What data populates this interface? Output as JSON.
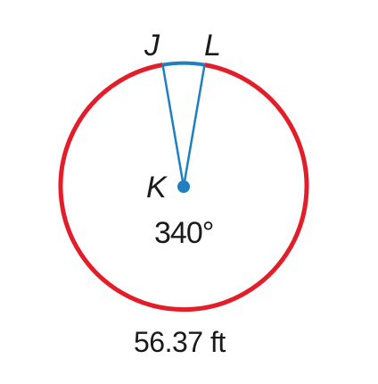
{
  "diagram": {
    "labels": {
      "point_j": "J",
      "point_l": "L",
      "center_k": "K",
      "major_arc_angle": "340°",
      "major_arc_length": "56.37 ft"
    },
    "colors": {
      "major_arc": "#e31e2b",
      "minor_arc_and_radii": "#1f7fc1",
      "center_point": "#1f7fc1",
      "text": "#1a1a1a"
    },
    "icons": {
      "center_point": "filled-dot"
    }
  }
}
